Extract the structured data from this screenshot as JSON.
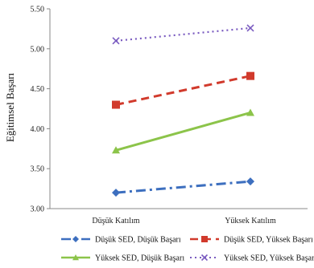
{
  "chart_data": {
    "type": "line",
    "title": "",
    "xlabel": "",
    "ylabel": "Eğitimsel Başarı",
    "categories": [
      "Düşük Katılım",
      "Yüksek Katılım"
    ],
    "ylim": [
      3.0,
      5.5
    ],
    "yticks": [
      "3.00",
      "3.50",
      "4.00",
      "4.50",
      "5.00",
      "5.50"
    ],
    "grid": false,
    "legend_position": "bottom",
    "series": [
      {
        "name": "Düşük SED, Düşük Başarı",
        "values": [
          3.2,
          3.34
        ],
        "color": "#3d6fbf",
        "marker": "diamond",
        "dash": "dashdot"
      },
      {
        "name": "Düşük SED, Yüksek Başarı",
        "values": [
          4.3,
          4.66
        ],
        "color": "#d13a2c",
        "marker": "square",
        "dash": "dash"
      },
      {
        "name": "Yüksek SED, Düşük Başarı",
        "values": [
          3.73,
          4.2
        ],
        "color": "#8cc44a",
        "marker": "triangle",
        "dash": "solid"
      },
      {
        "name": "Yüksek SED, Yüksek Başarı",
        "values": [
          5.1,
          5.26
        ],
        "color": "#7a5bc0",
        "marker": "x",
        "dash": "dot"
      }
    ]
  }
}
